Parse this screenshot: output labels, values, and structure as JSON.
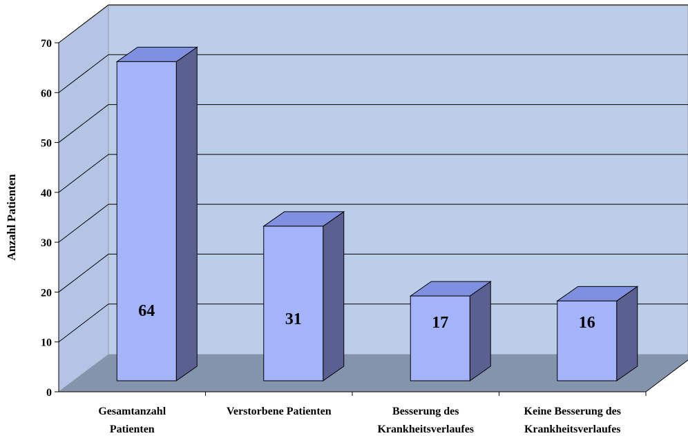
{
  "chart_data": {
    "type": "bar3d",
    "y_label": "Anzahl Patienten",
    "categories": [
      [
        "Gesamtanzahl",
        "Patienten"
      ],
      [
        "Verstorbene Patienten"
      ],
      [
        "Besserung des",
        "Krankheitsverlaufes"
      ],
      [
        "Keine Besserung des",
        "Krankheitsverlaufes"
      ]
    ],
    "values": [
      64,
      31,
      17,
      16
    ],
    "color": "#a4b4fa",
    "ylim": [
      0,
      70
    ],
    "yticks": [
      0,
      10,
      20,
      30,
      40,
      50,
      60,
      70
    ],
    "grid": true
  }
}
